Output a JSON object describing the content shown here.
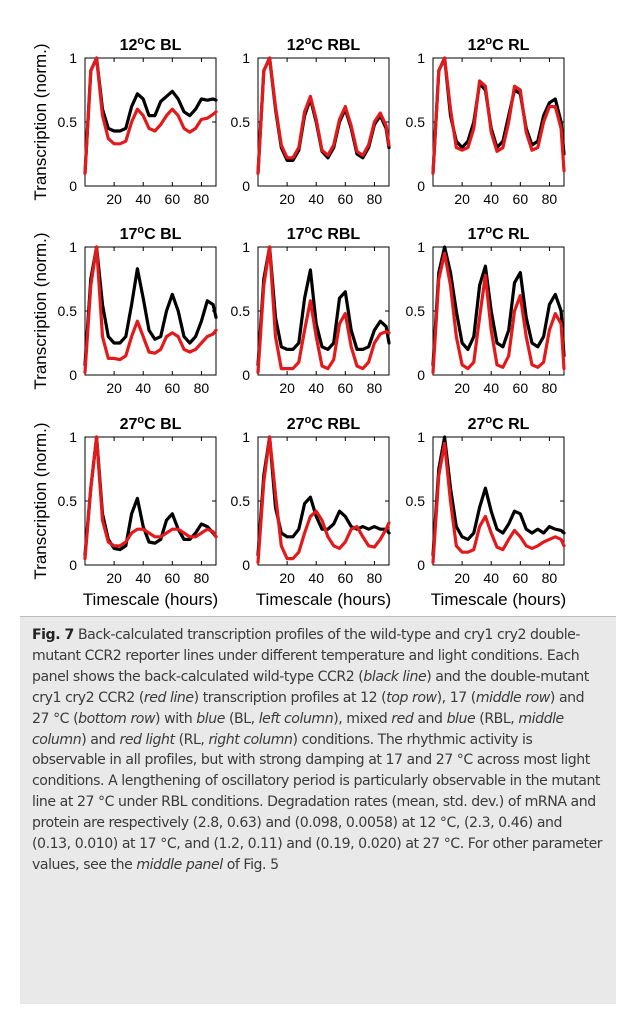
{
  "figure": {
    "ylabel": "Transcription (norm.)",
    "xlabel": "Timescale (hours)",
    "yticks": [
      0,
      0.5,
      1
    ],
    "xticks": [
      20,
      40,
      60,
      80
    ],
    "colors": {
      "wild_type": "#000000",
      "double_mutant": "#e31a1c"
    }
  },
  "chart_data": [
    {
      "type": "line",
      "title": "12°C BL",
      "xlim": [
        0,
        90
      ],
      "ylim": [
        0,
        1
      ],
      "x": [
        0,
        4,
        8,
        12,
        16,
        20,
        24,
        28,
        32,
        36,
        40,
        44,
        48,
        52,
        56,
        60,
        64,
        68,
        72,
        76,
        80,
        84,
        88,
        92
      ],
      "series": [
        {
          "values": [
            0.1,
            0.9,
            1.0,
            0.6,
            0.45,
            0.43,
            0.43,
            0.45,
            0.62,
            0.72,
            0.68,
            0.55,
            0.55,
            0.66,
            0.7,
            0.74,
            0.68,
            0.58,
            0.55,
            0.6,
            0.68,
            0.67,
            0.68,
            0.67
          ]
        },
        {
          "values": [
            0.1,
            0.9,
            1.0,
            0.55,
            0.37,
            0.33,
            0.33,
            0.35,
            0.5,
            0.6,
            0.55,
            0.45,
            0.43,
            0.48,
            0.55,
            0.6,
            0.55,
            0.45,
            0.42,
            0.45,
            0.52,
            0.53,
            0.56,
            0.58
          ]
        }
      ]
    },
    {
      "type": "line",
      "title": "12°C RBL",
      "xlim": [
        0,
        90
      ],
      "ylim": [
        0,
        1
      ],
      "x": [
        0,
        4,
        8,
        12,
        16,
        20,
        24,
        28,
        32,
        36,
        40,
        44,
        48,
        52,
        56,
        60,
        64,
        68,
        72,
        76,
        80,
        84,
        88,
        92
      ],
      "series": [
        {
          "values": [
            0.1,
            0.9,
            1.0,
            0.6,
            0.3,
            0.2,
            0.2,
            0.28,
            0.55,
            0.68,
            0.5,
            0.27,
            0.22,
            0.3,
            0.5,
            0.6,
            0.45,
            0.25,
            0.22,
            0.3,
            0.48,
            0.55,
            0.45,
            0.3
          ]
        },
        {
          "values": [
            0.1,
            0.9,
            1.0,
            0.62,
            0.32,
            0.22,
            0.22,
            0.3,
            0.58,
            0.7,
            0.52,
            0.28,
            0.24,
            0.32,
            0.52,
            0.62,
            0.47,
            0.27,
            0.24,
            0.32,
            0.5,
            0.57,
            0.47,
            0.32
          ]
        }
      ]
    },
    {
      "type": "line",
      "title": "12°C RL",
      "xlim": [
        0,
        90
      ],
      "ylim": [
        0,
        1
      ],
      "x": [
        0,
        4,
        8,
        12,
        16,
        20,
        24,
        28,
        32,
        36,
        40,
        44,
        48,
        52,
        56,
        60,
        64,
        68,
        72,
        76,
        80,
        84,
        88,
        92
      ],
      "series": [
        {
          "values": [
            0.1,
            0.9,
            1.0,
            0.55,
            0.35,
            0.3,
            0.35,
            0.5,
            0.8,
            0.75,
            0.45,
            0.3,
            0.35,
            0.55,
            0.75,
            0.72,
            0.45,
            0.32,
            0.35,
            0.55,
            0.65,
            0.68,
            0.5,
            0.25
          ]
        },
        {
          "values": [
            0.1,
            0.9,
            1.0,
            0.6,
            0.3,
            0.28,
            0.3,
            0.45,
            0.82,
            0.78,
            0.42,
            0.27,
            0.3,
            0.5,
            0.78,
            0.75,
            0.42,
            0.28,
            0.3,
            0.5,
            0.62,
            0.62,
            0.45,
            0.12
          ]
        }
      ]
    },
    {
      "type": "line",
      "title": "17°C BL",
      "xlim": [
        0,
        90
      ],
      "ylim": [
        0,
        1
      ],
      "x": [
        0,
        4,
        8,
        12,
        16,
        20,
        24,
        28,
        32,
        36,
        40,
        44,
        48,
        52,
        56,
        60,
        64,
        68,
        72,
        76,
        80,
        84,
        88,
        92
      ],
      "series": [
        {
          "values": [
            0.08,
            0.75,
            1.0,
            0.55,
            0.3,
            0.25,
            0.25,
            0.3,
            0.55,
            0.83,
            0.6,
            0.35,
            0.28,
            0.3,
            0.5,
            0.63,
            0.5,
            0.3,
            0.25,
            0.3,
            0.42,
            0.58,
            0.55,
            0.45
          ]
        },
        {
          "values": [
            0.02,
            0.7,
            1.0,
            0.3,
            0.13,
            0.13,
            0.12,
            0.15,
            0.3,
            0.42,
            0.3,
            0.18,
            0.17,
            0.2,
            0.3,
            0.33,
            0.3,
            0.2,
            0.18,
            0.2,
            0.25,
            0.3,
            0.32,
            0.35
          ]
        }
      ]
    },
    {
      "type": "line",
      "title": "17°C RBL",
      "xlim": [
        0,
        90
      ],
      "ylim": [
        0,
        1
      ],
      "x": [
        0,
        4,
        8,
        12,
        16,
        20,
        24,
        28,
        32,
        36,
        40,
        44,
        48,
        52,
        56,
        60,
        64,
        68,
        72,
        76,
        80,
        84,
        88,
        92
      ],
      "series": [
        {
          "values": [
            0.08,
            0.75,
            1.0,
            0.45,
            0.22,
            0.2,
            0.2,
            0.25,
            0.6,
            0.82,
            0.4,
            0.22,
            0.2,
            0.25,
            0.6,
            0.65,
            0.35,
            0.2,
            0.2,
            0.22,
            0.35,
            0.42,
            0.38,
            0.25
          ]
        },
        {
          "values": [
            0.02,
            0.7,
            1.0,
            0.3,
            0.05,
            0.05,
            0.05,
            0.1,
            0.35,
            0.58,
            0.3,
            0.07,
            0.05,
            0.12,
            0.4,
            0.48,
            0.22,
            0.07,
            0.05,
            0.1,
            0.25,
            0.32,
            0.34,
            0.33
          ]
        }
      ]
    },
    {
      "type": "line",
      "title": "17°C RL",
      "xlim": [
        0,
        90
      ],
      "ylim": [
        0,
        1
      ],
      "x": [
        0,
        4,
        8,
        12,
        16,
        20,
        24,
        28,
        32,
        36,
        40,
        44,
        48,
        52,
        56,
        60,
        64,
        68,
        72,
        76,
        80,
        84,
        88,
        92
      ],
      "series": [
        {
          "values": [
            0.08,
            0.8,
            1.0,
            0.8,
            0.5,
            0.25,
            0.2,
            0.3,
            0.7,
            0.85,
            0.5,
            0.25,
            0.22,
            0.35,
            0.72,
            0.8,
            0.45,
            0.25,
            0.22,
            0.3,
            0.55,
            0.63,
            0.5,
            0.15
          ]
        },
        {
          "values": [
            0.02,
            0.75,
            0.95,
            0.7,
            0.3,
            0.08,
            0.05,
            0.1,
            0.45,
            0.78,
            0.35,
            0.08,
            0.06,
            0.15,
            0.5,
            0.62,
            0.3,
            0.08,
            0.06,
            0.1,
            0.35,
            0.48,
            0.4,
            0.05
          ]
        }
      ]
    },
    {
      "type": "line",
      "title": "27°C BL",
      "xlim": [
        0,
        90
      ],
      "ylim": [
        0,
        1
      ],
      "x": [
        0,
        4,
        8,
        12,
        16,
        20,
        24,
        28,
        32,
        36,
        40,
        44,
        48,
        52,
        56,
        60,
        64,
        68,
        72,
        76,
        80,
        84,
        88,
        92
      ],
      "series": [
        {
          "values": [
            0.08,
            0.6,
            1.0,
            0.4,
            0.2,
            0.13,
            0.12,
            0.15,
            0.4,
            0.52,
            0.3,
            0.18,
            0.17,
            0.2,
            0.35,
            0.4,
            0.28,
            0.2,
            0.2,
            0.25,
            0.32,
            0.3,
            0.25,
            0.22
          ]
        },
        {
          "values": [
            0.05,
            0.6,
            1.0,
            0.35,
            0.18,
            0.15,
            0.15,
            0.18,
            0.25,
            0.28,
            0.28,
            0.25,
            0.22,
            0.22,
            0.25,
            0.28,
            0.28,
            0.25,
            0.22,
            0.22,
            0.25,
            0.28,
            0.26,
            0.22
          ]
        }
      ]
    },
    {
      "type": "line",
      "title": "27°C RBL",
      "xlim": [
        0,
        90
      ],
      "ylim": [
        0,
        1
      ],
      "x": [
        0,
        4,
        8,
        12,
        16,
        20,
        24,
        28,
        32,
        36,
        40,
        44,
        48,
        52,
        56,
        60,
        64,
        68,
        72,
        76,
        80,
        84,
        88,
        92
      ],
      "series": [
        {
          "values": [
            0.08,
            0.7,
            1.0,
            0.45,
            0.25,
            0.22,
            0.22,
            0.28,
            0.48,
            0.53,
            0.38,
            0.28,
            0.28,
            0.32,
            0.42,
            0.38,
            0.3,
            0.28,
            0.3,
            0.28,
            0.3,
            0.28,
            0.28,
            0.25
          ]
        },
        {
          "values": [
            0.02,
            0.65,
            1.0,
            0.55,
            0.15,
            0.05,
            0.05,
            0.1,
            0.25,
            0.38,
            0.42,
            0.35,
            0.22,
            0.15,
            0.13,
            0.18,
            0.28,
            0.3,
            0.22,
            0.15,
            0.14,
            0.2,
            0.28,
            0.33
          ]
        }
      ]
    },
    {
      "type": "line",
      "title": "27°C RL",
      "xlim": [
        0,
        90
      ],
      "ylim": [
        0,
        1
      ],
      "x": [
        0,
        4,
        8,
        12,
        16,
        20,
        24,
        28,
        32,
        36,
        40,
        44,
        48,
        52,
        56,
        60,
        64,
        68,
        72,
        76,
        80,
        84,
        88,
        92
      ],
      "series": [
        {
          "values": [
            0.08,
            0.75,
            1.0,
            0.6,
            0.3,
            0.22,
            0.2,
            0.25,
            0.45,
            0.6,
            0.42,
            0.28,
            0.25,
            0.32,
            0.42,
            0.4,
            0.28,
            0.25,
            0.28,
            0.25,
            0.3,
            0.28,
            0.27,
            0.25
          ]
        },
        {
          "values": [
            0.02,
            0.7,
            0.95,
            0.5,
            0.15,
            0.1,
            0.1,
            0.12,
            0.3,
            0.38,
            0.25,
            0.14,
            0.12,
            0.2,
            0.27,
            0.22,
            0.15,
            0.13,
            0.15,
            0.18,
            0.2,
            0.22,
            0.2,
            0.15
          ]
        }
      ]
    }
  ],
  "caption": {
    "label": "Fig. 7",
    "parts": [
      {
        "t": " Back-calculated transcription profiles of the wild-type and cry1 cry2 double-mutant CCR2 reporter lines under different temperature and light conditions. Each panel shows the back-calculated wild-type CCR2 ("
      },
      {
        "t": "black line",
        "i": true
      },
      {
        "t": ") and the double-mutant cry1 cry2 CCR2 ("
      },
      {
        "t": "red line",
        "i": true
      },
      {
        "t": ") transcription profiles at 12 ("
      },
      {
        "t": "top row",
        "i": true
      },
      {
        "t": "), 17 ("
      },
      {
        "t": "middle row",
        "i": true
      },
      {
        "t": ") and 27 °C ("
      },
      {
        "t": "bottom row",
        "i": true
      },
      {
        "t": ") with "
      },
      {
        "t": "blue",
        "i": true
      },
      {
        "t": " (BL, "
      },
      {
        "t": "left column",
        "i": true
      },
      {
        "t": "), mixed "
      },
      {
        "t": "red",
        "i": true
      },
      {
        "t": " and "
      },
      {
        "t": "blue",
        "i": true
      },
      {
        "t": " (RBL, "
      },
      {
        "t": "middle column",
        "i": true
      },
      {
        "t": ") and "
      },
      {
        "t": "red light",
        "i": true
      },
      {
        "t": " (RL, "
      },
      {
        "t": "right column",
        "i": true
      },
      {
        "t": ") conditions. The rhythmic activity is observable in all profiles, but with strong damping at 17 and 27 °C across most light conditions. A lengthening of oscillatory period is particularly observable in the mutant line at 27 °C under RBL conditions. Degradation rates (mean, std. dev.) of mRNA and protein are respectively (2.8, 0.63) and (0.098, 0.0058) at 12 °C, (2.3, 0.46) and (0.13, 0.010) at 17 °C, and (1.2, 0.11) and (0.19, 0.020) at 27 °C. For other parameter values, see the "
      },
      {
        "t": "middle panel",
        "i": true
      },
      {
        "t": " of Fig. 5"
      }
    ]
  }
}
